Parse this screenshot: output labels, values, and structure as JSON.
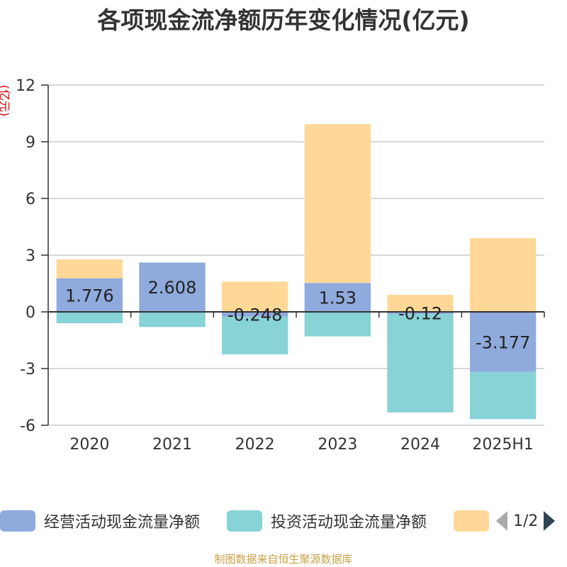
{
  "title": "各项现金流净额历年变化情况(亿元)",
  "y_unit": "(亿元)",
  "source": "制图数据来自恒生聚源数据库",
  "legend": {
    "items": [
      {
        "label": "经营活动现金流量净额",
        "color": "#8faadc"
      },
      {
        "label": "投资活动现金流量净额",
        "color": "#87d3d6"
      },
      {
        "label": "",
        "color": "#ffd898"
      }
    ],
    "page": "1/2"
  },
  "chart_data": {
    "type": "bar",
    "stacked": true,
    "categories": [
      "2020",
      "2021",
      "2022",
      "2023",
      "2024",
      "2025H1"
    ],
    "ylim": [
      -6,
      12
    ],
    "yticks": [
      "-6",
      "-3",
      "0",
      "3",
      "6",
      "9",
      "12"
    ],
    "grid": true,
    "legend_position": "bottom",
    "series": [
      {
        "name": "经营活动现金流量净额",
        "color": "#8faadc",
        "values": [
          1.776,
          2.608,
          -0.248,
          1.53,
          -0.12,
          -3.177
        ],
        "labels": [
          "1.776",
          "2.608",
          "-0.248",
          "1.53",
          "-0.12",
          "-3.177"
        ]
      },
      {
        "name": "投资活动现金流量净额",
        "color": "#87d3d6",
        "values": [
          -0.6,
          -0.8,
          -2.0,
          -1.3,
          -5.2,
          -2.5
        ]
      },
      {
        "color": "#ffd898",
        "values": [
          1.0,
          0.0,
          1.6,
          8.4,
          0.9,
          3.9
        ]
      }
    ]
  }
}
